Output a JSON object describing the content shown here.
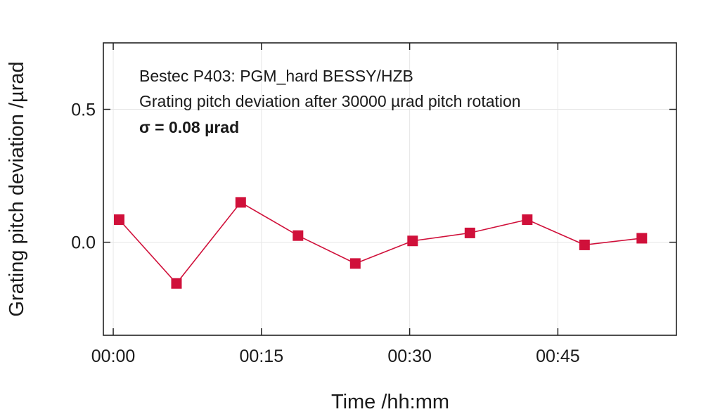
{
  "chart_data": {
    "type": "line",
    "xlabel": "Time /hh:mm",
    "ylabel": "Grating pitch deviation /µrad",
    "xlim_minutes": [
      -1,
      57
    ],
    "ylim": [
      -0.35,
      0.75
    ],
    "x_ticks": [
      {
        "value": 0,
        "label": "00:00"
      },
      {
        "value": 15,
        "label": "00:15"
      },
      {
        "value": 30,
        "label": "00:30"
      },
      {
        "value": 45,
        "label": "00:45"
      }
    ],
    "y_ticks": [
      {
        "value": 0.5,
        "label": "0.5"
      },
      {
        "value": 0.0,
        "label": "0.0"
      }
    ],
    "grid": true,
    "series": [
      {
        "color": "#d0103a",
        "marker": "square",
        "x_minutes": [
          0.6,
          6.4,
          12.9,
          18.7,
          24.5,
          30.3,
          36.1,
          41.9,
          47.7,
          53.5
        ],
        "values": [
          0.085,
          -0.155,
          0.15,
          0.025,
          -0.08,
          0.005,
          0.035,
          0.085,
          -0.01,
          0.015
        ]
      }
    ],
    "annotations": {
      "line1": "Bestec P403: PGM_hard BESSY/HZB",
      "line2": "Grating pitch deviation after 30000 µrad pitch rotation",
      "line3": "σ = 0.08 µrad"
    }
  }
}
